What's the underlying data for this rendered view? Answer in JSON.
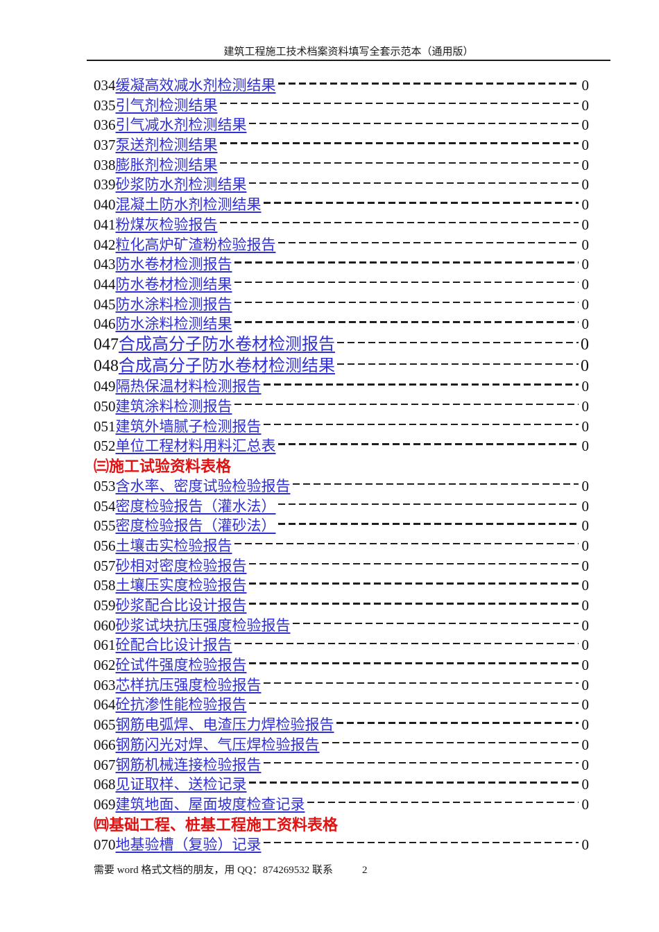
{
  "header": {
    "title": "建筑工程施工技术档案资料填写全套示范本（通用版）"
  },
  "footer": {
    "note": "需要 word 格式文档的朋友，用 QQ：874269532 联系",
    "page_number": "2"
  },
  "colors": {
    "link_blue": "#2f2fd3",
    "section_red": "#e01212",
    "ink": "#111111"
  },
  "toc": {
    "items": [
      {
        "kind": "entry",
        "num": "034",
        "label": "缓凝高效减水剂检测结果",
        "page": "0"
      },
      {
        "kind": "entry",
        "num": "035",
        "label": "引气剂检测结果",
        "page": "0"
      },
      {
        "kind": "entry",
        "num": "036",
        "label": "引气减水剂检测结果",
        "page": "0"
      },
      {
        "kind": "entry",
        "num": "037",
        "label": "泵送剂检测结果",
        "page": "0"
      },
      {
        "kind": "entry",
        "num": "038",
        "label": "膨胀剂检测结果",
        "page": "0"
      },
      {
        "kind": "entry",
        "num": "039",
        "label": "砂浆防水剂检测结果",
        "page": "0"
      },
      {
        "kind": "entry",
        "num": "040",
        "label": "混凝土防水剂检测结果",
        "page": "0"
      },
      {
        "kind": "entry",
        "num": "041",
        "label": "粉煤灰检验报告",
        "page": "0"
      },
      {
        "kind": "entry",
        "num": "042",
        "label": "粒化高炉矿渣粉检验报告",
        "page": "0"
      },
      {
        "kind": "entry",
        "num": "043",
        "label": "防水卷材检测报告",
        "page": "0"
      },
      {
        "kind": "entry",
        "num": "044",
        "label": "防水卷材检测结果",
        "page": "0"
      },
      {
        "kind": "entry",
        "num": "045",
        "label": "防水涂料检测报告",
        "page": "0"
      },
      {
        "kind": "entry",
        "num": "046",
        "label": "防水涂料检测结果",
        "page": "0"
      },
      {
        "kind": "entry",
        "num": "047",
        "label": "合成高分子防水卷材检测报告",
        "page": "0",
        "size": "large"
      },
      {
        "kind": "entry",
        "num": "048",
        "label": "合成高分子防水卷材检测结果",
        "page": "0",
        "size": "large"
      },
      {
        "kind": "entry",
        "num": "049",
        "label": "隔热保温材料检测报告",
        "page": "0"
      },
      {
        "kind": "entry",
        "num": "050",
        "label": "建筑涂料检测报告",
        "page": "0"
      },
      {
        "kind": "entry",
        "num": "051",
        "label": "建筑外墙腻子检测报告",
        "page": "0"
      },
      {
        "kind": "entry",
        "num": "052",
        "label": "单位工程材料用料汇总表",
        "page": "0"
      },
      {
        "kind": "section",
        "label": "㈢施工试验资料表格"
      },
      {
        "kind": "entry",
        "num": "053",
        "label": "含水率、密度试验检验报告",
        "page": "0"
      },
      {
        "kind": "entry",
        "num": "054",
        "label": "密度检验报告（灌水法）",
        "page": "0"
      },
      {
        "kind": "entry",
        "num": "055",
        "label": "密度检验报告（灌砂法）",
        "page": "0"
      },
      {
        "kind": "entry",
        "num": "056",
        "label": "土壤击实检验报告",
        "page": "0"
      },
      {
        "kind": "entry",
        "num": "057",
        "label": "砂相对密度检验报告",
        "page": "0"
      },
      {
        "kind": "entry",
        "num": "058",
        "label": "土壤压实度检验报告",
        "page": "0"
      },
      {
        "kind": "entry",
        "num": "059",
        "label": "砂浆配合比设计报告",
        "page": "0"
      },
      {
        "kind": "entry",
        "num": "060",
        "label": "砂浆试块抗压强度检验报告",
        "page": "0"
      },
      {
        "kind": "entry",
        "num": "061",
        "label": "砼配合比设计报告",
        "page": "0"
      },
      {
        "kind": "entry",
        "num": "062",
        "label": "砼试件强度检验报告",
        "page": "0"
      },
      {
        "kind": "entry",
        "num": "063",
        "label": "芯样抗压强度检验报告",
        "page": "0"
      },
      {
        "kind": "entry",
        "num": "064",
        "label": "砼抗渗性能检验报告",
        "page": "0"
      },
      {
        "kind": "entry",
        "num": "065",
        "label": "钢筋电弧焊、电渣压力焊检验报告",
        "page": "0"
      },
      {
        "kind": "entry",
        "num": "066",
        "label": "钢筋闪光对焊、气压焊检验报告",
        "page": "0"
      },
      {
        "kind": "entry",
        "num": "067",
        "label": "钢筋机械连接检验报告",
        "page": "0"
      },
      {
        "kind": "entry",
        "num": "068",
        "label": "见证取样、送检记录",
        "page": "0"
      },
      {
        "kind": "entry",
        "num": "069",
        "label": "建筑地面、屋面坡度检查记录",
        "page": "0"
      },
      {
        "kind": "section",
        "label": "㈣基础工程、桩基工程施工资料表格"
      },
      {
        "kind": "entry",
        "num": "070",
        "label": "地基验槽（复验）记录",
        "page": "0"
      }
    ]
  }
}
